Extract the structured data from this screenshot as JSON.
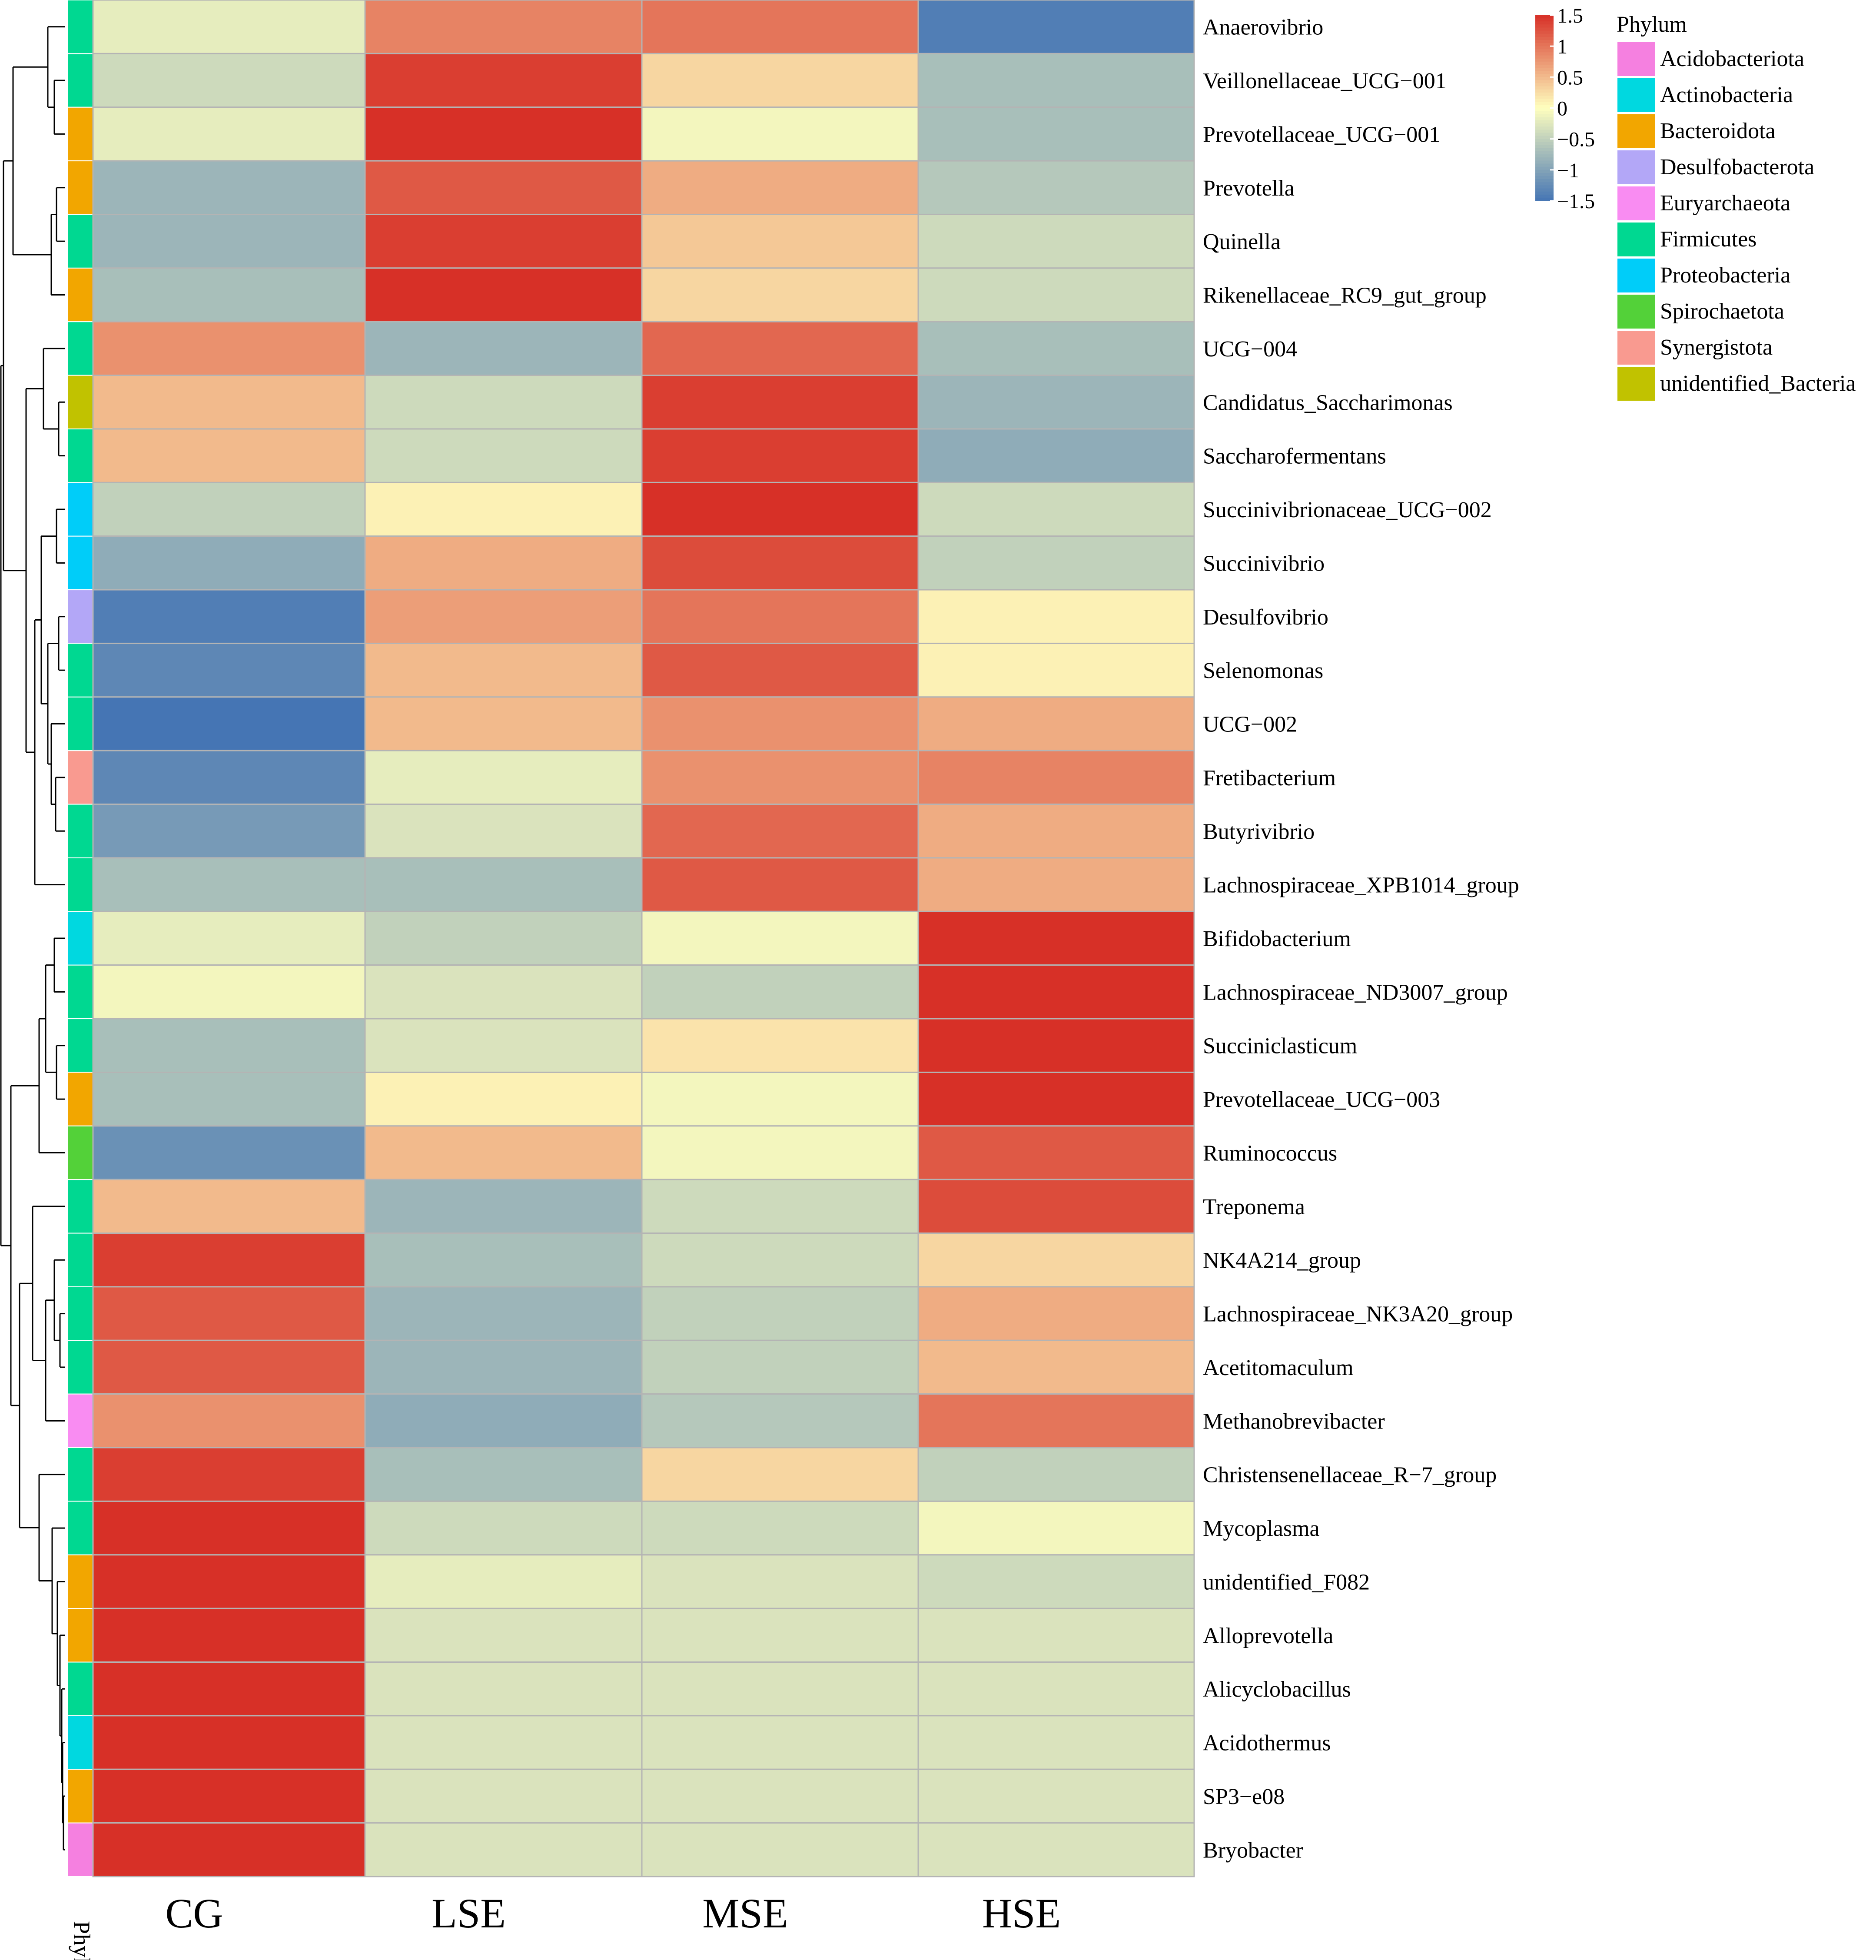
{
  "chart_data": {
    "type": "heatmap",
    "title": "",
    "columns": [
      "CG",
      "LSE",
      "MSE",
      "HSE"
    ],
    "rows": [
      {
        "label": "Anaerovibrio",
        "phylum": "Firmicutes",
        "values": [
          -0.2,
          0.9,
          1.0,
          -1.4
        ]
      },
      {
        "label": "Veillonellaceae_UCG−001",
        "phylum": "Firmicutes",
        "values": [
          -0.4,
          1.4,
          0.3,
          -0.7
        ]
      },
      {
        "label": "Prevotellaceae_UCG−001",
        "phylum": "Bacteroidota",
        "values": [
          -0.2,
          1.5,
          -0.1,
          -0.7
        ]
      },
      {
        "label": "Prevotella",
        "phylum": "Bacteroidota",
        "values": [
          -0.8,
          1.2,
          0.6,
          -0.6
        ]
      },
      {
        "label": "Quinella",
        "phylum": "Firmicutes",
        "values": [
          -0.8,
          1.4,
          0.4,
          -0.4
        ]
      },
      {
        "label": "Rikenellaceae_RC9_gut_group",
        "phylum": "Bacteroidota",
        "values": [
          -0.7,
          1.5,
          0.3,
          -0.4
        ]
      },
      {
        "label": "UCG−004",
        "phylum": "Firmicutes",
        "values": [
          0.8,
          -0.8,
          1.1,
          -0.7
        ]
      },
      {
        "label": "Candidatus_Saccharimonas",
        "phylum": "unidentified_Bacteria",
        "values": [
          0.5,
          -0.4,
          1.4,
          -0.8
        ]
      },
      {
        "label": "Saccharofermentans",
        "phylum": "Firmicutes",
        "values": [
          0.5,
          -0.4,
          1.4,
          -0.9
        ]
      },
      {
        "label": "Succinivibrionaceae_UCG−002",
        "phylum": "Proteobacteria",
        "values": [
          -0.5,
          0.1,
          1.5,
          -0.4
        ]
      },
      {
        "label": "Succinivibrio",
        "phylum": "Proteobacteria",
        "values": [
          -0.9,
          0.6,
          1.3,
          -0.5
        ]
      },
      {
        "label": "Desulfovibrio",
        "phylum": "Desulfobacterota",
        "values": [
          -1.4,
          0.7,
          1.0,
          0.1
        ]
      },
      {
        "label": "Selenomonas",
        "phylum": "Firmicutes",
        "values": [
          -1.3,
          0.5,
          1.2,
          0.1
        ]
      },
      {
        "label": "UCG−002",
        "phylum": "Firmicutes",
        "values": [
          -1.5,
          0.5,
          0.8,
          0.6
        ]
      },
      {
        "label": "Fretibacterium",
        "phylum": "Synergistota",
        "values": [
          -1.3,
          -0.2,
          0.8,
          0.9
        ]
      },
      {
        "label": "Butyrivibrio",
        "phylum": "Firmicutes",
        "values": [
          -1.1,
          -0.3,
          1.1,
          0.6
        ]
      },
      {
        "label": "Lachnospiraceae_XPB1014_group",
        "phylum": "Firmicutes",
        "values": [
          -0.7,
          -0.7,
          1.2,
          0.6
        ]
      },
      {
        "label": "Bifidobacterium",
        "phylum": "Actinobacteria",
        "values": [
          -0.2,
          -0.5,
          -0.1,
          1.5
        ]
      },
      {
        "label": "Lachnospiraceae_ND3007_group",
        "phylum": "Firmicutes",
        "values": [
          -0.1,
          -0.3,
          -0.5,
          1.5
        ]
      },
      {
        "label": "Succiniclasticum",
        "phylum": "Firmicutes",
        "values": [
          -0.7,
          -0.3,
          0.2,
          1.5
        ]
      },
      {
        "label": "Prevotellaceae_UCG−003",
        "phylum": "Bacteroidota",
        "values": [
          -0.7,
          0.1,
          -0.1,
          1.5
        ]
      },
      {
        "label": "Ruminococcus",
        "phylum": "Spirochaetota",
        "values": [
          -1.2,
          0.5,
          -0.1,
          1.2
        ]
      },
      {
        "label": "Treponema",
        "phylum": "Firmicutes",
        "values": [
          0.5,
          -0.8,
          -0.4,
          1.3
        ]
      },
      {
        "label": "NK4A214_group",
        "phylum": "Firmicutes",
        "values": [
          1.4,
          -0.7,
          -0.4,
          0.3
        ]
      },
      {
        "label": "Lachnospiraceae_NK3A20_group",
        "phylum": "Firmicutes",
        "values": [
          1.2,
          -0.8,
          -0.5,
          0.6
        ]
      },
      {
        "label": "Acetitomaculum",
        "phylum": "Firmicutes",
        "values": [
          1.2,
          -0.8,
          -0.5,
          0.5
        ]
      },
      {
        "label": "Methanobrevibacter",
        "phylum": "Euryarchaeota",
        "values": [
          0.8,
          -0.9,
          -0.6,
          1.0
        ]
      },
      {
        "label": "Christensenellaceae_R−7_group",
        "phylum": "Firmicutes",
        "values": [
          1.4,
          -0.7,
          0.3,
          -0.5
        ]
      },
      {
        "label": "Mycoplasma",
        "phylum": "Firmicutes",
        "values": [
          1.5,
          -0.4,
          -0.4,
          -0.1
        ]
      },
      {
        "label": "unidentified_F082",
        "phylum": "Bacteroidota",
        "values": [
          1.5,
          -0.2,
          -0.3,
          -0.4
        ]
      },
      {
        "label": "Alloprevotella",
        "phylum": "Bacteroidota",
        "values": [
          1.5,
          -0.3,
          -0.3,
          -0.3
        ]
      },
      {
        "label": "Alicyclobacillus",
        "phylum": "Firmicutes",
        "values": [
          1.5,
          -0.3,
          -0.3,
          -0.3
        ]
      },
      {
        "label": "Acidothermus",
        "phylum": "Actinobacteria",
        "values": [
          1.5,
          -0.3,
          -0.3,
          -0.3
        ]
      },
      {
        "label": "SP3−e08",
        "phylum": "Bacteroidota",
        "values": [
          1.5,
          -0.3,
          -0.3,
          -0.3
        ]
      },
      {
        "label": "Bryobacter",
        "phylum": "Acidobacteriota",
        "values": [
          1.5,
          -0.3,
          -0.3,
          -0.3
        ]
      }
    ],
    "phylum_annotation_label": "Phylum",
    "color_scale": {
      "range": [
        -1.5,
        1.5
      ],
      "ticks": [
        1.5,
        1,
        0.5,
        0,
        -0.5,
        -1,
        -1.5
      ],
      "tick_labels": [
        "1.5",
        "1",
        "0.5",
        "0",
        "−0.5",
        "−1",
        "−1.5"
      ],
      "low_color": "#4575b4",
      "mid_color": "#ffffbf",
      "high_color": "#d73027"
    },
    "legend": {
      "title": "Phylum",
      "entries": [
        {
          "label": "Acidobacteriota",
          "color": "#f580e0"
        },
        {
          "label": "Actinobacteria",
          "color": "#00d8e0"
        },
        {
          "label": "Bacteroidota",
          "color": "#f2a600"
        },
        {
          "label": "Desulfobacterota",
          "color": "#b3a7f7"
        },
        {
          "label": "Euryarchaeota",
          "color": "#f98cf2"
        },
        {
          "label": "Firmicutes",
          "color": "#00d891"
        },
        {
          "label": "Proteobacteria",
          "color": "#00cdf9"
        },
        {
          "label": "Spirochaetota",
          "color": "#53d139"
        },
        {
          "label": "Synergistota",
          "color": "#f99a90"
        },
        {
          "label": "unidentified_Bacteria",
          "color": "#c1c200"
        }
      ],
      "placement": "top-right"
    },
    "dendrogram": "row clustering tree on the left"
  }
}
